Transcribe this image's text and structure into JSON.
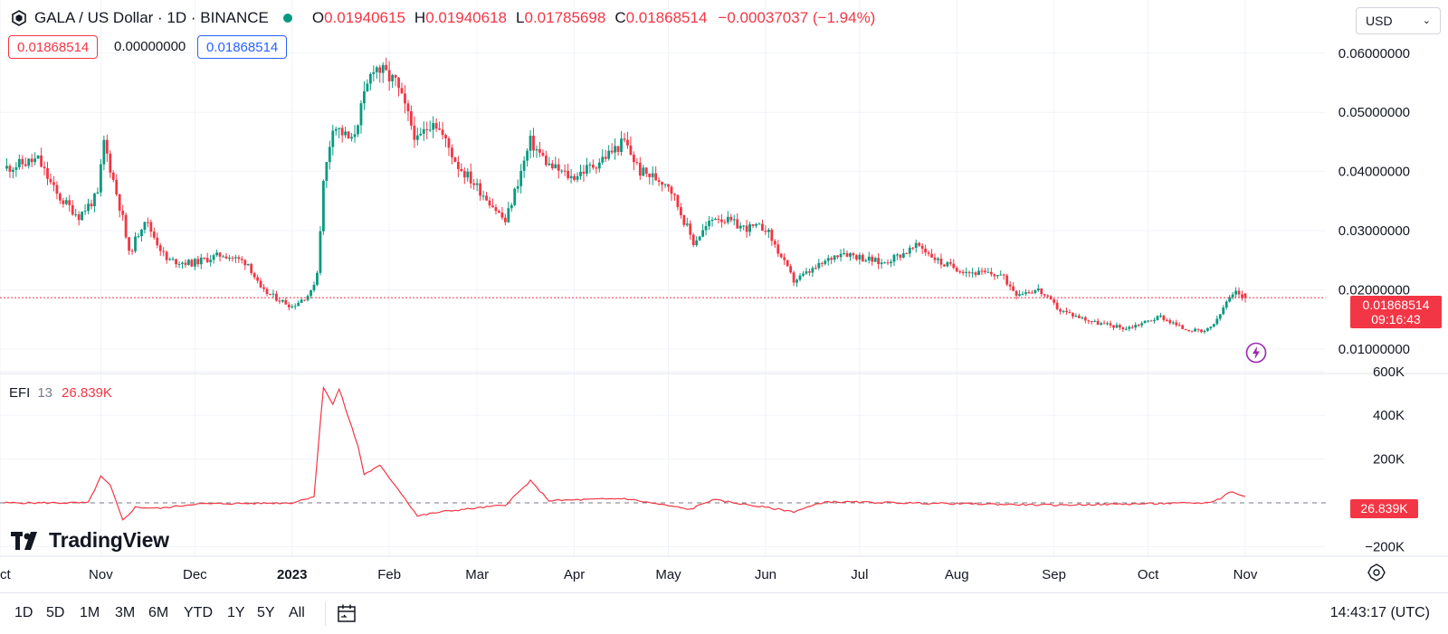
{
  "header": {
    "symbol": "GALA / US Dollar · 1D · BINANCE",
    "open_label": "O",
    "open": "0.01940615",
    "high_label": "H",
    "high": "0.01940618",
    "low_label": "L",
    "low": "0.01785698",
    "close_label": "C",
    "close": "0.01868514",
    "change": "−0.00037037 (−1.94%)",
    "market_dot_color": "#089981"
  },
  "order": {
    "sell": "0.01868514",
    "spread": "0.00000000",
    "buy": "0.01868514"
  },
  "currency": {
    "label": "USD",
    "chevron": "chevron-down-icon"
  },
  "price_axis": {
    "ticks": [
      "0.06000000",
      "0.05000000",
      "0.04000000",
      "0.03000000",
      "0.02000000",
      "0.01000000"
    ]
  },
  "last_price": {
    "value": "0.01868514",
    "countdown": "09:16:43"
  },
  "efi": {
    "name": "EFI",
    "period": "13",
    "value": "26.839K",
    "tag": "26.839K",
    "ticks": [
      "600K",
      "400K",
      "200K",
      "0",
      "−200K"
    ]
  },
  "time_axis": {
    "labels": [
      "ct",
      "Nov",
      "Dec",
      "2023",
      "Feb",
      "Mar",
      "Apr",
      "May",
      "Jun",
      "Jul",
      "Aug",
      "Sep",
      "Oct",
      "Nov"
    ]
  },
  "brand": "TradingView",
  "toolbar": {
    "timeframes": [
      "1D",
      "5D",
      "1M",
      "3M",
      "6M",
      "YTD",
      "1Y",
      "5Y",
      "All"
    ],
    "clock": "14:43:17 (UTC)"
  },
  "colors": {
    "up": "#089981",
    "down": "#f23645",
    "efi_line": "#f23645",
    "grid": "#f0f3fa"
  },
  "chart_data": [
    {
      "type": "candlestick",
      "title": "GALA / US Dollar · 1D · BINANCE",
      "x_range": [
        "2022-10-01",
        "2023-11-01"
      ],
      "ylim": [
        0.005,
        0.065
      ],
      "price_series": [
        {
          "date": "2022-10-01",
          "close": 0.0405
        },
        {
          "date": "2022-10-12",
          "close": 0.042
        },
        {
          "date": "2022-10-18",
          "close": 0.036
        },
        {
          "date": "2022-10-25",
          "close": 0.0325
        },
        {
          "date": "2022-10-31",
          "close": 0.036
        },
        {
          "date": "2022-11-02",
          "close": 0.045
        },
        {
          "date": "2022-11-08",
          "close": 0.032
        },
        {
          "date": "2022-11-10",
          "close": 0.026
        },
        {
          "date": "2022-11-15",
          "close": 0.032
        },
        {
          "date": "2022-11-22",
          "close": 0.025
        },
        {
          "date": "2022-11-30",
          "close": 0.0245
        },
        {
          "date": "2022-12-10",
          "close": 0.026
        },
        {
          "date": "2022-12-18",
          "close": 0.0245
        },
        {
          "date": "2022-12-22",
          "close": 0.02
        },
        {
          "date": "2023-01-01",
          "close": 0.0172
        },
        {
          "date": "2023-01-07",
          "close": 0.0195
        },
        {
          "date": "2023-01-09",
          "close": 0.023
        },
        {
          "date": "2023-01-11",
          "close": 0.038
        },
        {
          "date": "2023-01-14",
          "close": 0.048
        },
        {
          "date": "2023-01-20",
          "close": 0.045
        },
        {
          "date": "2023-01-27",
          "close": 0.058
        },
        {
          "date": "2023-02-03",
          "close": 0.055
        },
        {
          "date": "2023-02-10",
          "close": 0.045
        },
        {
          "date": "2023-02-15",
          "close": 0.049
        },
        {
          "date": "2023-02-23",
          "close": 0.041
        },
        {
          "date": "2023-03-05",
          "close": 0.035
        },
        {
          "date": "2023-03-10",
          "close": 0.0315
        },
        {
          "date": "2023-03-18",
          "close": 0.045
        },
        {
          "date": "2023-03-24",
          "close": 0.041
        },
        {
          "date": "2023-03-31",
          "close": 0.039
        },
        {
          "date": "2023-04-07",
          "close": 0.041
        },
        {
          "date": "2023-04-17",
          "close": 0.045
        },
        {
          "date": "2023-04-22",
          "close": 0.04
        },
        {
          "date": "2023-05-01",
          "close": 0.038
        },
        {
          "date": "2023-05-09",
          "close": 0.028
        },
        {
          "date": "2023-05-16",
          "close": 0.0325
        },
        {
          "date": "2023-05-25",
          "close": 0.0305
        },
        {
          "date": "2023-06-01",
          "close": 0.0305
        },
        {
          "date": "2023-06-10",
          "close": 0.0215
        },
        {
          "date": "2023-06-18",
          "close": 0.024
        },
        {
          "date": "2023-06-25",
          "close": 0.0265
        },
        {
          "date": "2023-07-08",
          "close": 0.0245
        },
        {
          "date": "2023-07-20",
          "close": 0.0275
        },
        {
          "date": "2023-07-27",
          "close": 0.0245
        },
        {
          "date": "2023-08-05",
          "close": 0.023
        },
        {
          "date": "2023-08-15",
          "close": 0.0225
        },
        {
          "date": "2023-08-20",
          "close": 0.0195
        },
        {
          "date": "2023-08-27",
          "close": 0.02
        },
        {
          "date": "2023-09-03",
          "close": 0.0165
        },
        {
          "date": "2023-09-14",
          "close": 0.0145
        },
        {
          "date": "2023-09-24",
          "close": 0.0135
        },
        {
          "date": "2023-10-05",
          "close": 0.0155
        },
        {
          "date": "2023-10-12",
          "close": 0.0135
        },
        {
          "date": "2023-10-19",
          "close": 0.0128
        },
        {
          "date": "2023-10-23",
          "close": 0.0148
        },
        {
          "date": "2023-10-26",
          "close": 0.018
        },
        {
          "date": "2023-10-29",
          "close": 0.0195
        },
        {
          "date": "2023-11-01",
          "close": 0.01868514
        }
      ],
      "last_ohlc": {
        "open": 0.01940615,
        "high": 0.01940618,
        "low": 0.01785698,
        "close": 0.01868514
      }
    },
    {
      "type": "line",
      "title": "EFI 13",
      "ylim": [
        -200000,
        600000
      ],
      "series": [
        {
          "name": "EFI",
          "points": [
            {
              "date": "2022-10-01",
              "value": 0
            },
            {
              "date": "2022-10-28",
              "value": 0
            },
            {
              "date": "2022-11-01",
              "value": 120000
            },
            {
              "date": "2022-11-04",
              "value": 80000
            },
            {
              "date": "2022-11-08",
              "value": -80000
            },
            {
              "date": "2022-11-12",
              "value": -20000
            },
            {
              "date": "2022-11-20",
              "value": -25000
            },
            {
              "date": "2022-12-01",
              "value": -5000
            },
            {
              "date": "2023-01-01",
              "value": 0
            },
            {
              "date": "2023-01-08",
              "value": 30000
            },
            {
              "date": "2023-01-11",
              "value": 530000
            },
            {
              "date": "2023-01-14",
              "value": 450000
            },
            {
              "date": "2023-01-16",
              "value": 520000
            },
            {
              "date": "2023-01-22",
              "value": 260000
            },
            {
              "date": "2023-01-24",
              "value": 130000
            },
            {
              "date": "2023-01-29",
              "value": 170000
            },
            {
              "date": "2023-02-04",
              "value": 60000
            },
            {
              "date": "2023-02-10",
              "value": -60000
            },
            {
              "date": "2023-02-18",
              "value": -40000
            },
            {
              "date": "2023-03-10",
              "value": -10000
            },
            {
              "date": "2023-03-18",
              "value": 100000
            },
            {
              "date": "2023-03-24",
              "value": 10000
            },
            {
              "date": "2023-04-17",
              "value": 20000
            },
            {
              "date": "2023-05-08",
              "value": -30000
            },
            {
              "date": "2023-05-15",
              "value": 15000
            },
            {
              "date": "2023-06-10",
              "value": -40000
            },
            {
              "date": "2023-06-20",
              "value": 5000
            },
            {
              "date": "2023-09-01",
              "value": -10000
            },
            {
              "date": "2023-10-20",
              "value": 0
            },
            {
              "date": "2023-10-24",
              "value": 20000
            },
            {
              "date": "2023-10-27",
              "value": 50000
            },
            {
              "date": "2023-10-29",
              "value": 45000
            },
            {
              "date": "2023-11-01",
              "value": 26839
            }
          ]
        }
      ]
    }
  ]
}
